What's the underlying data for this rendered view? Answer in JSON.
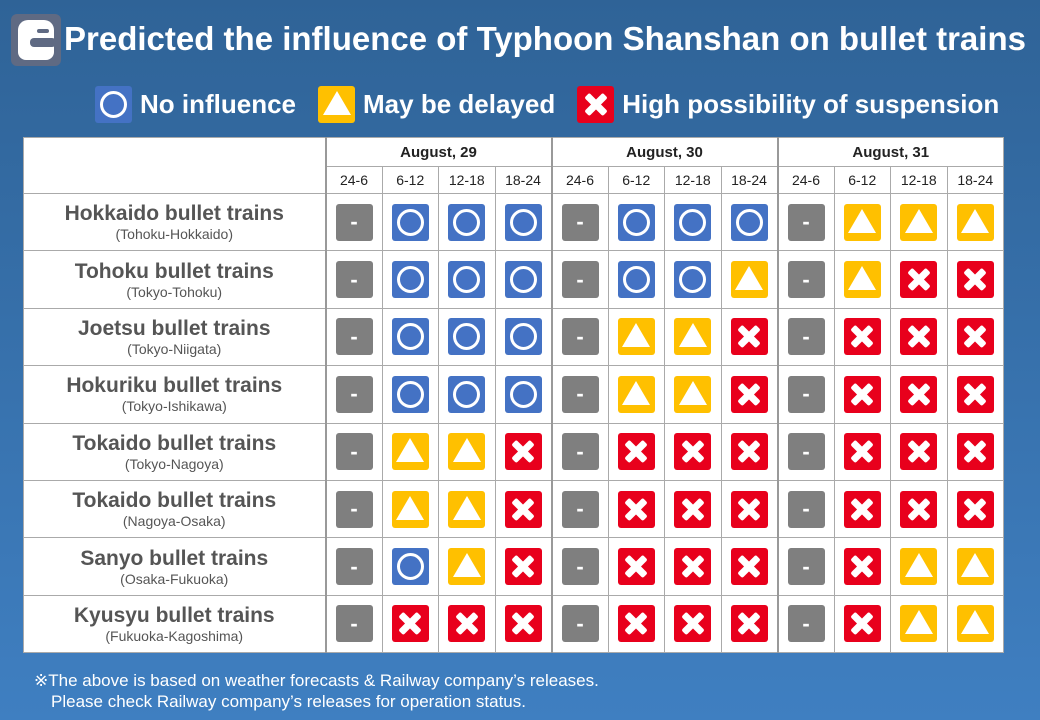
{
  "title": "Predicted the influence of Typhoon Shanshan on bullet trains",
  "logo_icon": "bullet-train-icon",
  "legend": [
    {
      "code": "O",
      "label": "No influence"
    },
    {
      "code": "T",
      "label": "May be delayed"
    },
    {
      "code": "X",
      "label": "High possibility of suspension"
    }
  ],
  "colors": {
    "O": "#4472c4",
    "T": "#ffc000",
    "X": "#e8001c",
    "D": "#7f7f7f"
  },
  "dash": "-",
  "days": [
    "August, 29",
    "August, 30",
    "August, 31"
  ],
  "slots": [
    "24-6",
    "6-12",
    "12-18",
    "18-24"
  ],
  "lines": [
    {
      "name": "Hokkaido bullet trains",
      "route": "(Tohoku-Hokkaido)",
      "status": [
        "D",
        "O",
        "O",
        "O",
        "D",
        "O",
        "O",
        "O",
        "D",
        "T",
        "T",
        "T"
      ]
    },
    {
      "name": "Tohoku bullet trains",
      "route": "(Tokyo-Tohoku)",
      "status": [
        "D",
        "O",
        "O",
        "O",
        "D",
        "O",
        "O",
        "T",
        "D",
        "T",
        "X",
        "X"
      ]
    },
    {
      "name": "Joetsu bullet trains",
      "route": "(Tokyo-Niigata)",
      "status": [
        "D",
        "O",
        "O",
        "O",
        "D",
        "T",
        "T",
        "X",
        "D",
        "X",
        "X",
        "X"
      ]
    },
    {
      "name": "Hokuriku bullet trains",
      "route": "(Tokyo-Ishikawa)",
      "status": [
        "D",
        "O",
        "O",
        "O",
        "D",
        "T",
        "T",
        "X",
        "D",
        "X",
        "X",
        "X"
      ]
    },
    {
      "name": "Tokaido bullet trains",
      "route": "(Tokyo-Nagoya)",
      "status": [
        "D",
        "T",
        "T",
        "X",
        "D",
        "X",
        "X",
        "X",
        "D",
        "X",
        "X",
        "X"
      ]
    },
    {
      "name": "Tokaido bullet trains",
      "route": "(Nagoya-Osaka)",
      "status": [
        "D",
        "T",
        "T",
        "X",
        "D",
        "X",
        "X",
        "X",
        "D",
        "X",
        "X",
        "X"
      ]
    },
    {
      "name": "Sanyo bullet trains",
      "route": "(Osaka-Fukuoka)",
      "status": [
        "D",
        "O",
        "T",
        "X",
        "D",
        "X",
        "X",
        "X",
        "D",
        "X",
        "T",
        "T"
      ]
    },
    {
      "name": "Kyusyu bullet trains",
      "route": "(Fukuoka-Kagoshima)",
      "status": [
        "D",
        "X",
        "X",
        "X",
        "D",
        "X",
        "X",
        "X",
        "D",
        "X",
        "T",
        "T"
      ]
    }
  ],
  "notes": [
    "※The above is based on weather forecasts & Railway company’s releases.",
    "Please check Railway company’s releases for operation status."
  ]
}
